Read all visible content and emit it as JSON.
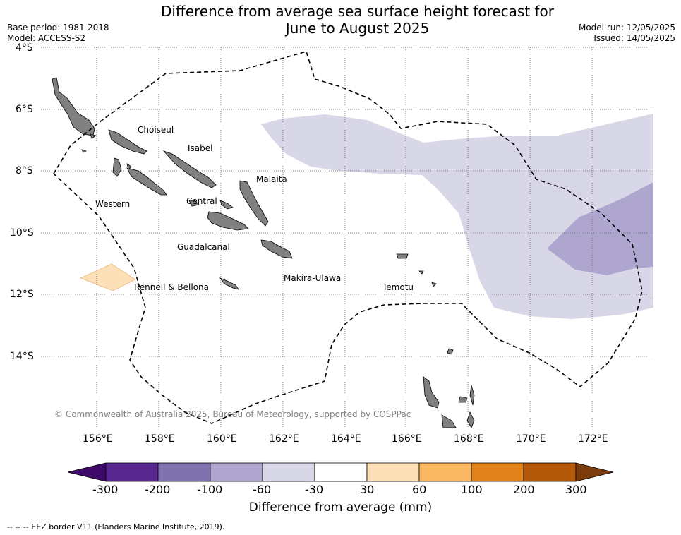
{
  "header": {
    "title_line1": "Difference from average sea surface height forecast for",
    "title_line2": "June to August 2025",
    "base_period": "Base period: 1981-2018",
    "model": "Model: ACCESS-S2",
    "model_run": "Model run: 12/05/2025",
    "issued": "Issued: 14/05/2025"
  },
  "map": {
    "lat_labels": [
      "4°S",
      "6°S",
      "8°S",
      "10°S",
      "12°S",
      "14°S"
    ],
    "lon_labels": [
      "156°E",
      "158°E",
      "160°E",
      "162°E",
      "164°E",
      "166°E",
      "168°E",
      "170°E",
      "172°E"
    ],
    "place_labels": [
      "Choiseul",
      "Isabel",
      "Malaita",
      "Western",
      "Central",
      "Guadalcanal",
      "Makira-Ulawa",
      "Rennell & Bellona",
      "Temotu"
    ],
    "copyright": "© Commonwealth of Australia 2025, Bureau of Meteorology, supported by COSPPac",
    "colors": {
      "ocean": "#ffffff",
      "land": "#808080",
      "anomaly_minus_30_to_60": "#d8d7e8",
      "anomaly_minus_60_to_100": "#afa6cf",
      "anomaly_30_to_60": "#fde0b7"
    }
  },
  "colorbar": {
    "label": "Difference from average (mm)",
    "ticks": [
      "-300",
      "-200",
      "-100",
      "-60",
      "-30",
      "30",
      "60",
      "100",
      "200",
      "300"
    ],
    "colors": [
      "#3f0a6a",
      "#582790",
      "#7e71ad",
      "#afa6cf",
      "#d8d7e8",
      "#ffffff",
      "#fde0b7",
      "#fbb862",
      "#e0821a",
      "#b25808",
      "#7b3b0a"
    ]
  },
  "footer": {
    "legend_text": "--  --  -- EEZ border V11 (Flanders Marine Institute, 2019)."
  }
}
